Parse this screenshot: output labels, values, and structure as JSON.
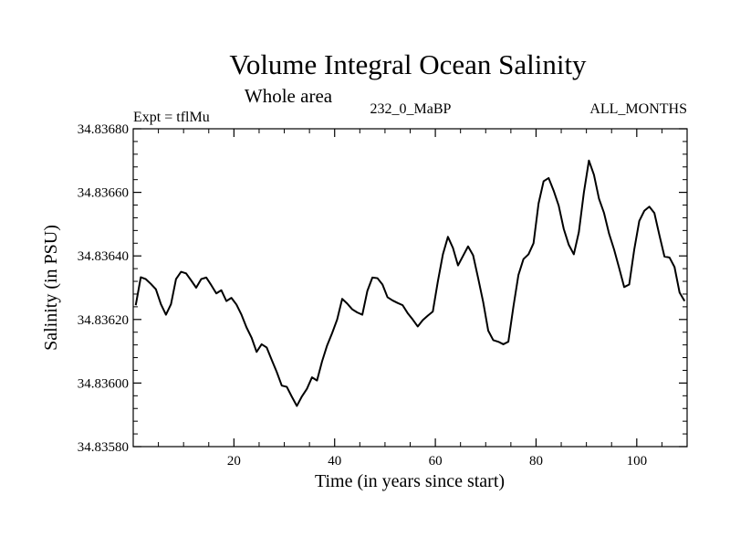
{
  "chart_data": {
    "type": "line",
    "title": "Volume Integral Ocean Salinity",
    "subtitle": "Whole area",
    "left_note": "Expt = tflMu",
    "center_note": "232_0_MaBP",
    "right_note": "ALL_MONTHS",
    "xlabel": "Time (in years since start)",
    "ylabel": "Salinity (in PSU)",
    "xlim": [
      0,
      110
    ],
    "ylim": [
      34.8358,
      34.8368
    ],
    "x_major_ticks": [
      20,
      40,
      60,
      80,
      100
    ],
    "x_tick_labels": [
      "20",
      "40",
      "60",
      "80",
      "100"
    ],
    "y_major_ticks": [
      34.8358,
      34.836,
      34.8362,
      34.8364,
      34.8366,
      34.8368
    ],
    "y_tick_labels": [
      "34.83580",
      "34.83600",
      "34.83620",
      "34.83640",
      "34.83660",
      "34.83680"
    ],
    "series": [
      {
        "name": "Salinity",
        "x": [
          0.5,
          1.5,
          2.5,
          3.5,
          4.5,
          5.5,
          6.5,
          7.5,
          8.5,
          9.5,
          10.5,
          11.5,
          12.5,
          13.5,
          14.5,
          15.5,
          16.5,
          17.5,
          18.5,
          19.5,
          20.5,
          21.5,
          22.5,
          23.5,
          24.5,
          25.5,
          26.5,
          27.5,
          28.5,
          29.5,
          30.5,
          31.5,
          32.5,
          33.5,
          34.5,
          35.5,
          36.5,
          37.5,
          38.5,
          39.5,
          40.5,
          41.5,
          42.5,
          43.5,
          44.5,
          45.5,
          46.5,
          47.5,
          48.5,
          49.5,
          50.5,
          51.5,
          52.5,
          53.5,
          54.5,
          55.5,
          56.5,
          57.5,
          58.5,
          59.5,
          60.5,
          61.5,
          62.5,
          63.5,
          64.5,
          65.5,
          66.5,
          67.5,
          68.5,
          69.5,
          70.5,
          71.5,
          72.5,
          73.5,
          74.5,
          75.5,
          76.5,
          77.5,
          78.5,
          79.5,
          80.5,
          81.5,
          82.5,
          83.5,
          84.5,
          85.5,
          86.5,
          87.5,
          88.5,
          89.5,
          90.5,
          91.5,
          92.5,
          93.5,
          94.5,
          95.5,
          96.5,
          97.5,
          98.5,
          99.5,
          100.5,
          101.5,
          102.5,
          103.5,
          104.5,
          105.5,
          106.5,
          107.5,
          108.5,
          109.5
        ],
        "values": [
          34.836245,
          34.836333,
          34.836327,
          34.836312,
          34.836295,
          34.836248,
          34.836215,
          34.836248,
          34.836327,
          34.83635,
          34.836345,
          34.836323,
          34.8363,
          34.836327,
          34.836332,
          34.836308,
          34.836282,
          34.836292,
          34.836258,
          34.836268,
          34.836247,
          34.836215,
          34.836175,
          34.836143,
          34.836098,
          34.836122,
          34.836112,
          34.836073,
          34.836035,
          34.835992,
          34.835988,
          34.835957,
          34.835928,
          34.835958,
          34.835982,
          34.836018,
          34.836008,
          34.836068,
          34.836118,
          34.836157,
          34.8362,
          34.836265,
          34.83625,
          34.836232,
          34.836222,
          34.836215,
          34.83629,
          34.836332,
          34.83633,
          34.83631,
          34.83627,
          34.83626,
          34.836252,
          34.836245,
          34.83622,
          34.8362,
          34.836178,
          34.836198,
          34.836212,
          34.836225,
          34.83632,
          34.836405,
          34.83646,
          34.836425,
          34.83637,
          34.8364,
          34.83643,
          34.836402,
          34.83633,
          34.836255,
          34.836165,
          34.836135,
          34.83613,
          34.836122,
          34.83613,
          34.83624,
          34.83634,
          34.83639,
          34.836405,
          34.83644,
          34.836565,
          34.836635,
          34.836645,
          34.836605,
          34.836558,
          34.836485,
          34.836435,
          34.836405,
          34.836475,
          34.8366,
          34.8367,
          34.836655,
          34.83658,
          34.836535,
          34.83647,
          34.83642,
          34.836362,
          34.836302,
          34.83631,
          34.83642,
          34.83651,
          34.836542,
          34.836555,
          34.836535,
          34.836465,
          34.836398,
          34.836395,
          34.836365,
          34.836285,
          34.836258
        ]
      }
    ]
  }
}
